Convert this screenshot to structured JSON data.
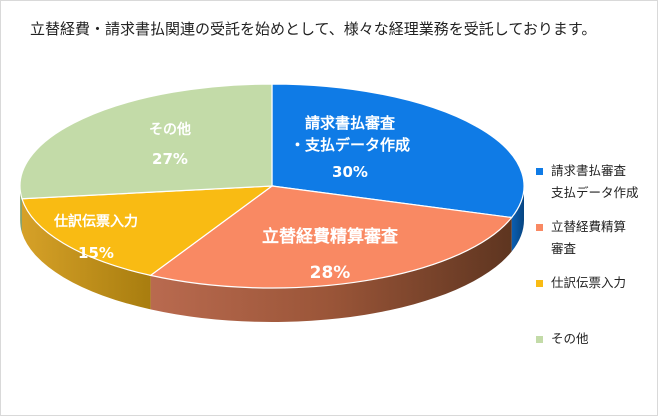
{
  "header": {
    "title": "立替経費・請求書払関連の受託を始めとして、様々な経理業務を受託しております。"
  },
  "colors": {
    "blue": "#0f7be6",
    "orange": "#f98963",
    "yellow": "#f9bb13",
    "green": "#c3dba8"
  },
  "chart_data": {
    "type": "pie",
    "title": "",
    "labels": [
      "請求書払審査・支払データ作成",
      "立替経費精算審査",
      "仕訳伝票入力",
      "その他"
    ],
    "values": [
      30,
      28,
      15,
      27
    ],
    "value_labels": [
      "30%",
      "28%",
      "15%",
      "27%"
    ],
    "slice_text": [
      [
        "請求書払審査",
        "・支払データ作成"
      ],
      [
        "立替経費精算審査"
      ],
      [
        "仕訳伝票入力"
      ],
      [
        "その他"
      ]
    ],
    "legend": {
      "position": "right",
      "entries": [
        [
          "請求書払審査",
          "支払データ作成"
        ],
        [
          "立替経費精算",
          "審査"
        ],
        [
          "仕訳伝票入力"
        ],
        [
          "その他"
        ]
      ]
    }
  }
}
